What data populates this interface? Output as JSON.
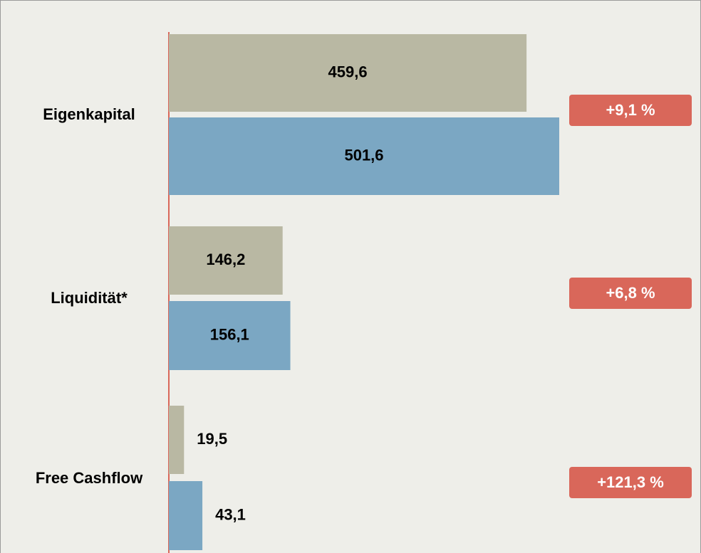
{
  "chart_data": {
    "type": "bar",
    "orientation": "horizontal",
    "categories": [
      "Eigenkapital",
      "Liquidität*",
      "Free Cashflow"
    ],
    "series": [
      {
        "color": "#b9b8a3",
        "values": [
          459.6,
          146.2,
          19.5
        ],
        "value_labels": [
          "459,6",
          "146,2",
          "19,5"
        ]
      },
      {
        "color": "#7ba7c3",
        "values": [
          501.6,
          156.1,
          43.1
        ],
        "value_labels": [
          "501,6",
          "156,1",
          "43,1"
        ]
      }
    ],
    "annotations": [
      "+9,1 %",
      "+6,8 %",
      "+121,3 %"
    ],
    "annotation_color": "#d9675a",
    "baseline_color": "#d9675a"
  }
}
